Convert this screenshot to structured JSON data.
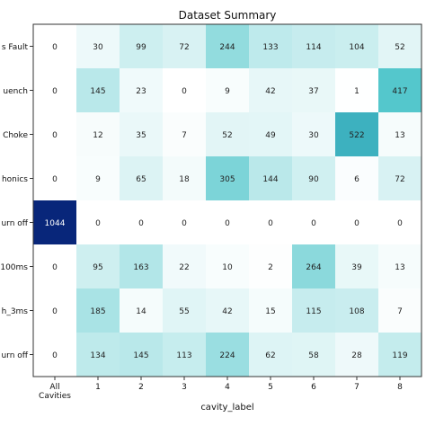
{
  "chart_data": {
    "type": "heatmap",
    "title": "Dataset Summary",
    "xlabel": "cavity_label",
    "ylabel": "",
    "x_categories": [
      "All\nCavities",
      "1",
      "2",
      "3",
      "4",
      "5",
      "6",
      "7",
      "8"
    ],
    "y_categories": [
      "...s Fault",
      "...uench",
      "Choke",
      "...honics",
      "...urn off",
      "...100ms",
      "...h_3ms",
      "...urn off"
    ],
    "values": [
      [
        0,
        30,
        99,
        72,
        244,
        133,
        114,
        104,
        52
      ],
      [
        0,
        145,
        23,
        0,
        9,
        42,
        37,
        1,
        417
      ],
      [
        0,
        12,
        35,
        7,
        52,
        49,
        30,
        522,
        13
      ],
      [
        0,
        9,
        65,
        18,
        305,
        144,
        90,
        6,
        72
      ],
      [
        1044,
        0,
        0,
        0,
        0,
        0,
        0,
        0,
        0
      ],
      [
        0,
        95,
        163,
        22,
        10,
        2,
        264,
        39,
        13
      ],
      [
        0,
        185,
        14,
        55,
        42,
        15,
        115,
        108,
        7
      ],
      [
        0,
        134,
        145,
        113,
        224,
        62,
        58,
        28,
        119
      ]
    ],
    "color_scale": {
      "colormap": "white-cyan-navy",
      "vmin": 0,
      "vmax": 1044,
      "low": "#ffffff",
      "mid": "#44c2c7",
      "high": "#08267a"
    },
    "grid": false,
    "legend": "none"
  }
}
